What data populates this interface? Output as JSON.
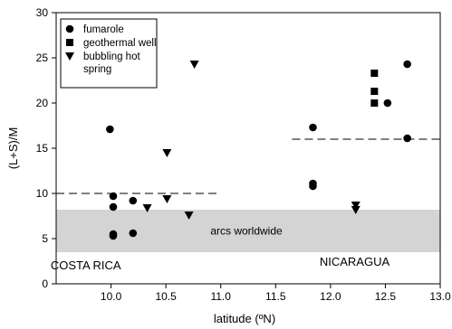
{
  "chart_data": {
    "type": "scatter",
    "xlabel": "latitude (ºN)",
    "ylabel": "(L+S)/M",
    "xlim": [
      9.5,
      13.0
    ],
    "ylim": [
      0,
      30
    ],
    "x_ticks": [
      "10.0",
      "10.5",
      "11.0",
      "11.5",
      "12.0",
      "12.5",
      "13.0"
    ],
    "y_ticks": [
      "0",
      "5",
      "10",
      "15",
      "20",
      "25",
      "30"
    ],
    "grid": false,
    "legend_position": "top-left",
    "series": [
      {
        "name": "fumarole",
        "marker": "circle",
        "points": [
          {
            "x": 9.99,
            "y": 17.1
          },
          {
            "x": 10.02,
            "y": 9.7
          },
          {
            "x": 10.02,
            "y": 8.5
          },
          {
            "x": 10.02,
            "y": 5.5
          },
          {
            "x": 10.02,
            "y": 5.3
          },
          {
            "x": 10.2,
            "y": 9.2
          },
          {
            "x": 10.2,
            "y": 5.6
          },
          {
            "x": 11.84,
            "y": 17.3
          },
          {
            "x": 11.84,
            "y": 11.1
          },
          {
            "x": 11.84,
            "y": 10.8
          },
          {
            "x": 12.52,
            "y": 20.0
          },
          {
            "x": 12.7,
            "y": 24.3
          },
          {
            "x": 12.7,
            "y": 16.1
          }
        ]
      },
      {
        "name": "geothermal well",
        "marker": "square",
        "points": [
          {
            "x": 12.4,
            "y": 23.3
          },
          {
            "x": 12.4,
            "y": 21.3
          },
          {
            "x": 12.4,
            "y": 20.0
          }
        ]
      },
      {
        "name": "bubbling hot spring",
        "marker": "triangle-down",
        "points": [
          {
            "x": 10.33,
            "y": 8.4
          },
          {
            "x": 10.51,
            "y": 14.5
          },
          {
            "x": 10.51,
            "y": 9.4
          },
          {
            "x": 10.71,
            "y": 7.6
          },
          {
            "x": 10.76,
            "y": 24.3
          },
          {
            "x": 12.23,
            "y": 8.7
          },
          {
            "x": 12.23,
            "y": 8.2
          }
        ]
      }
    ],
    "reference_lines": [
      {
        "x_start": 9.5,
        "x_end": 11.0,
        "y": 10.0,
        "style": "dashed"
      },
      {
        "x_start": 11.65,
        "x_end": 13.0,
        "y": 16.0,
        "style": "dashed"
      }
    ],
    "bands": [
      {
        "label": "arcs worldwide",
        "y_min": 3.5,
        "y_max": 8.2,
        "color": "#d4d4d4"
      }
    ],
    "annotations": [
      {
        "text": "COSTA RICA",
        "x": 9.77,
        "y": 1.6
      },
      {
        "text": "NICARAGUA",
        "x": 12.22,
        "y": 2.0
      }
    ]
  }
}
